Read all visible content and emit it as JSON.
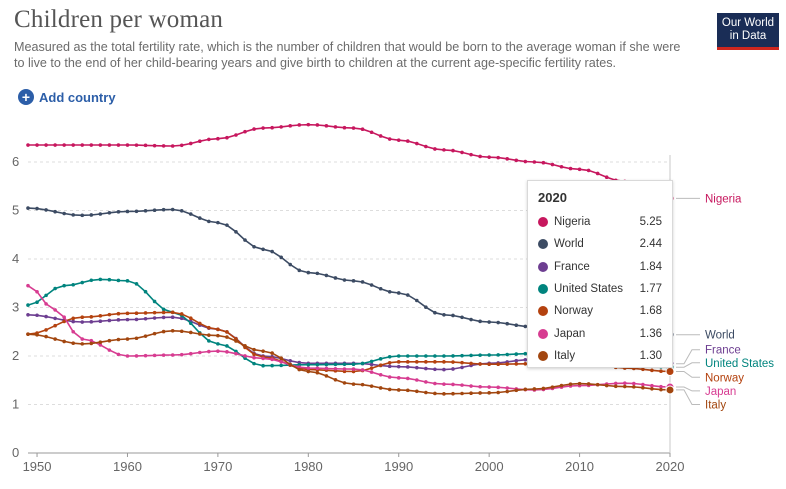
{
  "header": {
    "title": "Children per woman",
    "subtitle": "Measured as the total fertility rate, which is the number of children that would be born to the average woman if she were to live to the end of her child-bearing years and give birth to children at the current age-specific fertility rates.",
    "logo_line1": "Our World",
    "logo_line2": "in Data"
  },
  "controls": {
    "add_country_label": "Add country",
    "add_icon": "plus-circle-icon"
  },
  "tooltip": {
    "year": "2020",
    "rows": [
      {
        "name": "Nigeria",
        "value": "5.25"
      },
      {
        "name": "World",
        "value": "2.44"
      },
      {
        "name": "France",
        "value": "1.84"
      },
      {
        "name": "United States",
        "value": "1.77"
      },
      {
        "name": "Norway",
        "value": "1.68"
      },
      {
        "name": "Japan",
        "value": "1.36"
      },
      {
        "name": "Italy",
        "value": "1.30"
      }
    ]
  },
  "chart_data": {
    "type": "line",
    "title": "Children per woman",
    "xlim": [
      1949,
      2020
    ],
    "ylim": [
      0,
      7
    ],
    "x_ticks": [
      1950,
      1960,
      1970,
      1980,
      1990,
      2000,
      2010,
      2020
    ],
    "y_ticks": [
      0,
      1,
      2,
      3,
      4,
      5,
      6
    ],
    "grid": "horizontal dashed",
    "legend": "right-end labels",
    "series": [
      {
        "name": "Nigeria",
        "color": "#c7175e",
        "points": [
          [
            1949,
            6.35
          ],
          [
            1955,
            6.35
          ],
          [
            1960,
            6.35
          ],
          [
            1965,
            6.33
          ],
          [
            1970,
            6.48
          ],
          [
            1975,
            6.7
          ],
          [
            1980,
            6.77
          ],
          [
            1985,
            6.7
          ],
          [
            1990,
            6.45
          ],
          [
            1995,
            6.25
          ],
          [
            2000,
            6.1
          ],
          [
            2005,
            6.0
          ],
          [
            2010,
            5.85
          ],
          [
            2015,
            5.6
          ],
          [
            2020,
            5.25
          ]
        ]
      },
      {
        "name": "World",
        "color": "#3c4b63",
        "points": [
          [
            1949,
            5.05
          ],
          [
            1955,
            4.9
          ],
          [
            1960,
            4.98
          ],
          [
            1965,
            5.02
          ],
          [
            1970,
            4.75
          ],
          [
            1975,
            4.2
          ],
          [
            1980,
            3.72
          ],
          [
            1985,
            3.55
          ],
          [
            1990,
            3.3
          ],
          [
            1995,
            2.85
          ],
          [
            2000,
            2.7
          ],
          [
            2005,
            2.6
          ],
          [
            2010,
            2.52
          ],
          [
            2015,
            2.5
          ],
          [
            2020,
            2.44
          ]
        ]
      },
      {
        "name": "France",
        "color": "#6d3e91",
        "points": [
          [
            1949,
            2.85
          ],
          [
            1955,
            2.7
          ],
          [
            1960,
            2.75
          ],
          [
            1965,
            2.8
          ],
          [
            1970,
            2.55
          ],
          [
            1975,
            2.0
          ],
          [
            1980,
            1.85
          ],
          [
            1985,
            1.85
          ],
          [
            1990,
            1.78
          ],
          [
            1995,
            1.72
          ],
          [
            2000,
            1.85
          ],
          [
            2005,
            1.93
          ],
          [
            2010,
            2.01
          ],
          [
            2015,
            1.95
          ],
          [
            2020,
            1.84
          ]
        ]
      },
      {
        "name": "United States",
        "color": "#00847e",
        "points": [
          [
            1949,
            3.05
          ],
          [
            1953,
            3.45
          ],
          [
            1957,
            3.58
          ],
          [
            1960,
            3.55
          ],
          [
            1965,
            2.9
          ],
          [
            1970,
            2.25
          ],
          [
            1975,
            1.8
          ],
          [
            1980,
            1.82
          ],
          [
            1985,
            1.83
          ],
          [
            1990,
            2.0
          ],
          [
            1995,
            2.0
          ],
          [
            2000,
            2.02
          ],
          [
            2005,
            2.05
          ],
          [
            2010,
            1.95
          ],
          [
            2015,
            1.85
          ],
          [
            2020,
            1.77
          ]
        ]
      },
      {
        "name": "Norway",
        "color": "#b4420f",
        "points": [
          [
            1949,
            2.45
          ],
          [
            1955,
            2.8
          ],
          [
            1960,
            2.88
          ],
          [
            1965,
            2.9
          ],
          [
            1970,
            2.55
          ],
          [
            1975,
            1.98
          ],
          [
            1980,
            1.72
          ],
          [
            1985,
            1.68
          ],
          [
            1990,
            1.88
          ],
          [
            1995,
            1.88
          ],
          [
            2000,
            1.83
          ],
          [
            2005,
            1.84
          ],
          [
            2010,
            1.92
          ],
          [
            2015,
            1.75
          ],
          [
            2020,
            1.68
          ]
        ]
      },
      {
        "name": "Japan",
        "color": "#d73c91",
        "points": [
          [
            1949,
            3.45
          ],
          [
            1952,
            2.95
          ],
          [
            1955,
            2.35
          ],
          [
            1960,
            2.0
          ],
          [
            1965,
            2.02
          ],
          [
            1970,
            2.1
          ],
          [
            1975,
            1.95
          ],
          [
            1980,
            1.75
          ],
          [
            1985,
            1.73
          ],
          [
            1990,
            1.55
          ],
          [
            1995,
            1.42
          ],
          [
            2000,
            1.36
          ],
          [
            2005,
            1.3
          ],
          [
            2010,
            1.39
          ],
          [
            2015,
            1.44
          ],
          [
            2020,
            1.36
          ]
        ]
      },
      {
        "name": "Italy",
        "color": "#a2460f",
        "points": [
          [
            1949,
            2.45
          ],
          [
            1955,
            2.25
          ],
          [
            1960,
            2.35
          ],
          [
            1965,
            2.52
          ],
          [
            1970,
            2.42
          ],
          [
            1975,
            2.1
          ],
          [
            1980,
            1.68
          ],
          [
            1985,
            1.42
          ],
          [
            1990,
            1.3
          ],
          [
            1995,
            1.22
          ],
          [
            2000,
            1.24
          ],
          [
            2005,
            1.32
          ],
          [
            2010,
            1.43
          ],
          [
            2015,
            1.37
          ],
          [
            2020,
            1.3
          ]
        ]
      }
    ],
    "end_labels": [
      {
        "name": "Nigeria",
        "y_label": 5.25
      },
      {
        "name": "World",
        "y_label": 2.44
      },
      {
        "name": "France",
        "y_label": 2.13
      },
      {
        "name": "United States",
        "y_label": 1.86
      },
      {
        "name": "Norway",
        "y_label": 1.56
      },
      {
        "name": "Japan",
        "y_label": 1.28
      },
      {
        "name": "Italy",
        "y_label": 1.0
      }
    ]
  }
}
